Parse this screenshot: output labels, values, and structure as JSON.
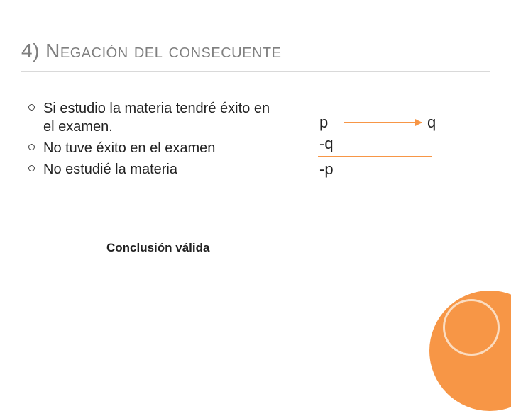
{
  "title": "4) Negación del consecuente",
  "bullets": [
    "Si estudio la materia tendré éxito en el examen.",
    "No tuve éxito en el examen",
    "No estudié la materia"
  ],
  "logic": {
    "premise_left": "p",
    "premise_right": "q",
    "second": "-q",
    "conclusion": "-p"
  },
  "conclusion_label": "Conclusión válida",
  "colors": {
    "accent": "#f79646",
    "title_text": "#7f7f7f",
    "underline": "#d9d9d9",
    "ring": "#fbdcc0"
  }
}
